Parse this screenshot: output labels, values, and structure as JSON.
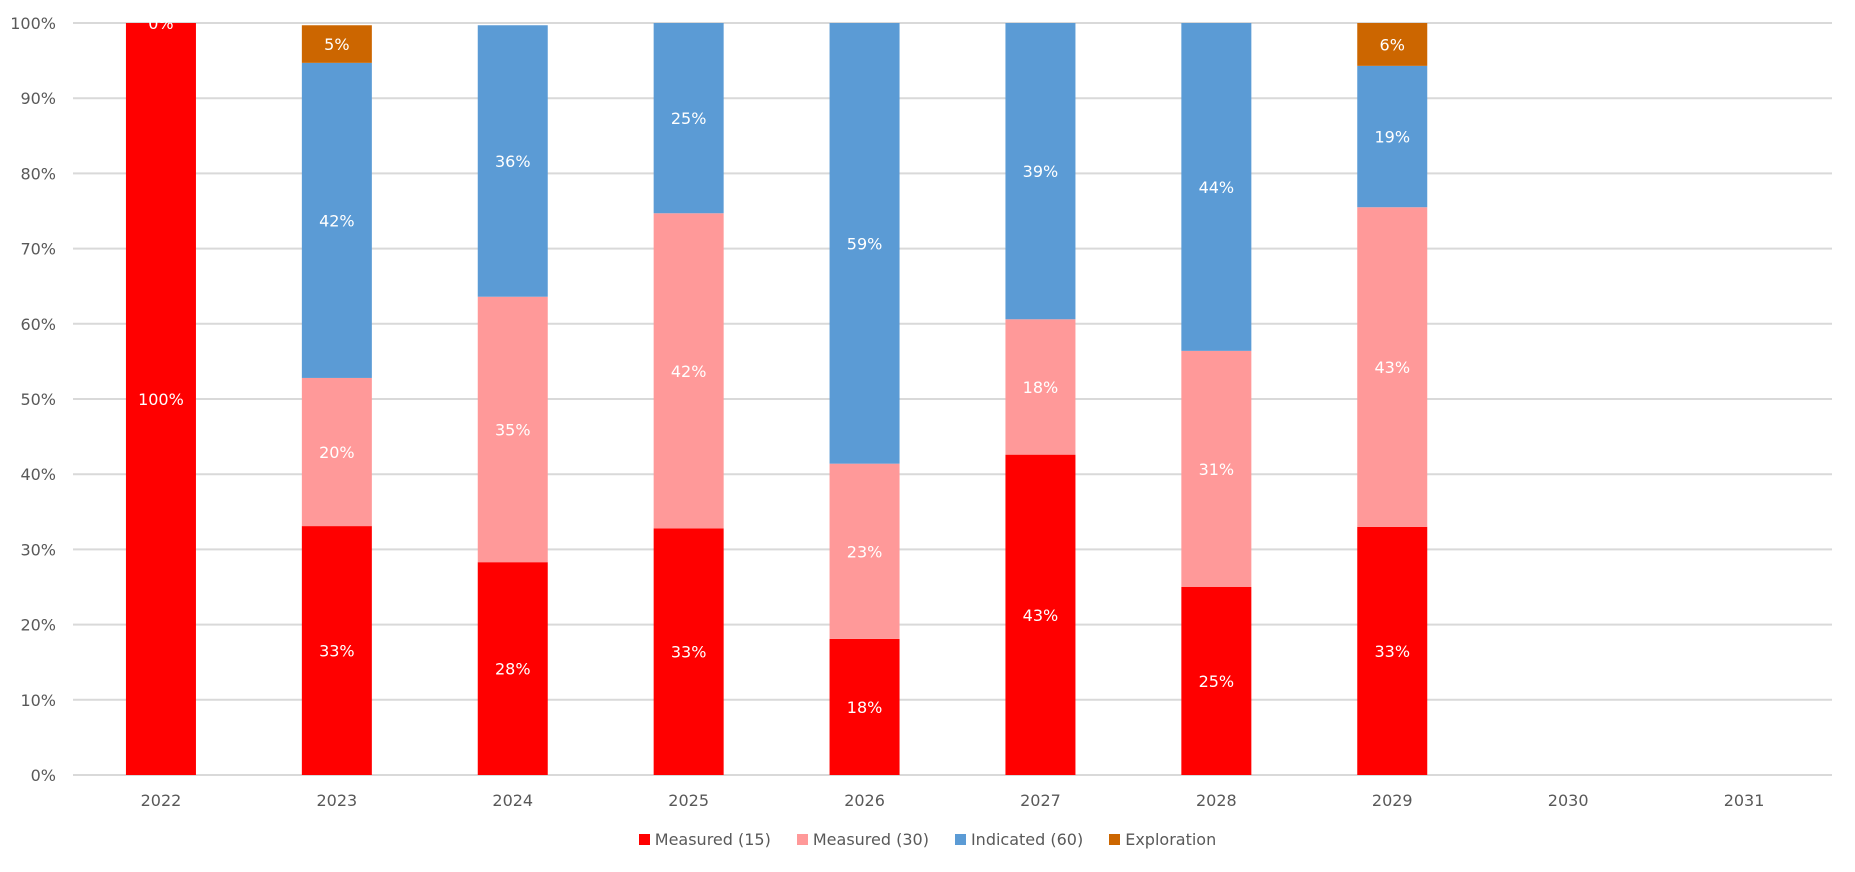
{
  "chart_data": {
    "type": "bar",
    "stacked": true,
    "percent_stacked": true,
    "title": "",
    "xlabel": "",
    "ylabel": "",
    "ylim": [
      0,
      100
    ],
    "yticks": [
      "0%",
      "10%",
      "20%",
      "30%",
      "40%",
      "50%",
      "60%",
      "70%",
      "80%",
      "90%",
      "100%"
    ],
    "grid": true,
    "legend_position": "bottom",
    "categories": [
      "2022",
      "2023",
      "2024",
      "2025",
      "2026",
      "2027",
      "2028",
      "2029",
      "2030",
      "2031"
    ],
    "series": [
      {
        "name": "Measured (15)",
        "color": "#FF0000",
        "values": [
          100,
          33.1,
          28.3,
          32.8,
          18.1,
          42.6,
          25.0,
          33.0,
          null,
          null
        ],
        "labels": [
          "100%",
          "33%",
          "28%",
          "33%",
          "18%",
          "43%",
          "25%",
          "33%",
          null,
          null
        ]
      },
      {
        "name": "Measured (30)",
        "color": "#FF9999",
        "values": [
          0,
          19.7,
          35.3,
          41.9,
          23.3,
          18.0,
          31.4,
          42.5,
          null,
          null
        ],
        "labels": [
          null,
          "20%",
          "35%",
          "42%",
          "23%",
          "18%",
          "31%",
          "43%",
          null,
          null
        ]
      },
      {
        "name": "Indicated (60)",
        "color": "#5B9BD5",
        "values": [
          0,
          41.9,
          36.1,
          25.3,
          58.6,
          39.4,
          43.6,
          18.8,
          null,
          null
        ],
        "labels": [
          null,
          "42%",
          "36%",
          "25%",
          "59%",
          "39%",
          "44%",
          "19%",
          null,
          null
        ]
      },
      {
        "name": "Exploration",
        "color": "#CC6600",
        "values": [
          0,
          5.0,
          0,
          0,
          0,
          0,
          0,
          5.7,
          null,
          null
        ],
        "labels": [
          "0%",
          "5%",
          null,
          null,
          null,
          null,
          null,
          "6%",
          null,
          null
        ]
      }
    ]
  },
  "legend": {
    "items": [
      {
        "label": "Measured (15)",
        "color": "#FF0000"
      },
      {
        "label": "Measured (30)",
        "color": "#FF9999"
      },
      {
        "label": "Indicated (60)",
        "color": "#5B9BD5"
      },
      {
        "label": "Exploration",
        "color": "#CC6600"
      }
    ]
  },
  "colors": {
    "gridline": "#D9D9D9",
    "axis_text": "#595959",
    "label_text": "#FFFFFF"
  }
}
